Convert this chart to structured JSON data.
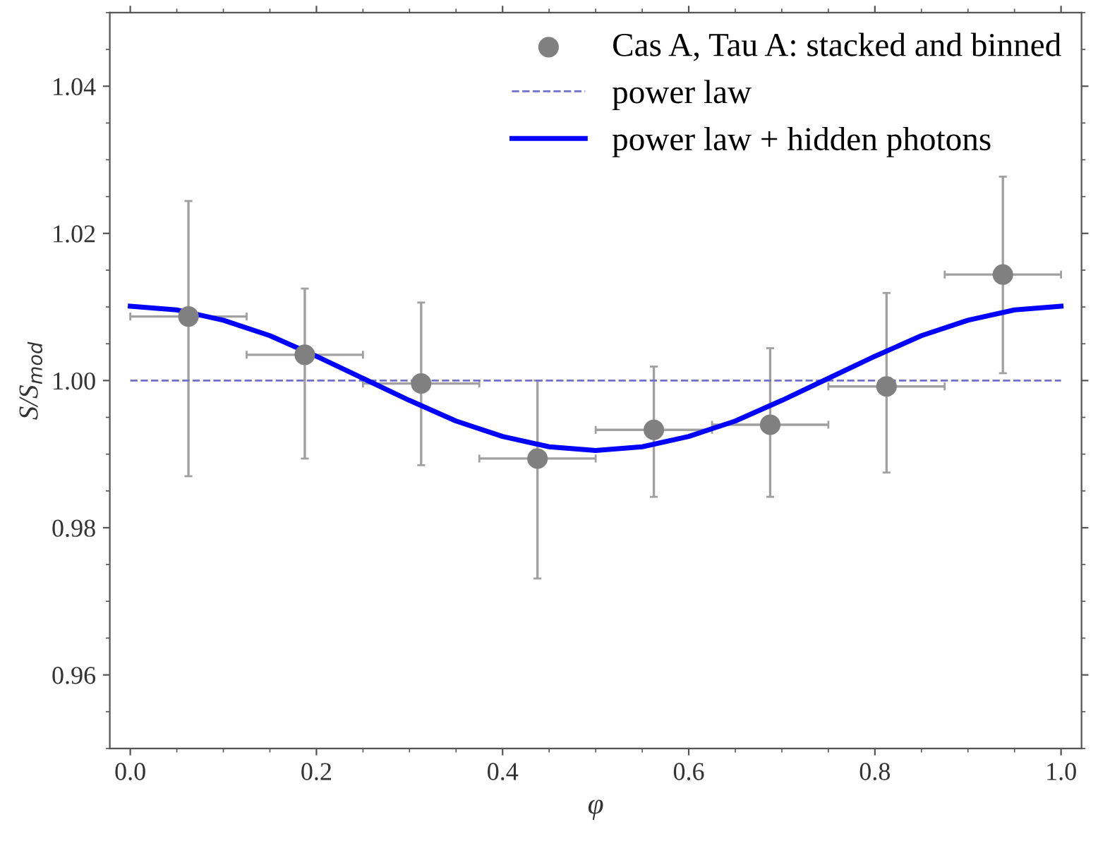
{
  "chart_data": {
    "type": "scatter",
    "xlabel": "φ",
    "ylabel": "S/S$_{mod}$",
    "xlim": [
      -0.022,
      1.022
    ],
    "ylim": [
      0.95,
      1.05
    ],
    "xticks": [
      {
        "value": 0.0,
        "label": "0.0"
      },
      {
        "value": 0.2,
        "label": "0.2"
      },
      {
        "value": 0.4,
        "label": "0.4"
      },
      {
        "value": 0.6,
        "label": "0.6"
      },
      {
        "value": 0.8,
        "label": "0.8"
      },
      {
        "value": 1.0,
        "label": "1.0"
      }
    ],
    "yticks": [
      {
        "value": 0.96,
        "label": "0.96"
      },
      {
        "value": 0.98,
        "label": "0.98"
      },
      {
        "value": 1.0,
        "label": "1.00"
      },
      {
        "value": 1.02,
        "label": "1.02"
      },
      {
        "value": 1.04,
        "label": "1.04"
      }
    ],
    "legend": "top right",
    "grid": false,
    "series": [
      {
        "name": "Cas A, Tau A: stacked and binned",
        "marker": "circle",
        "color": "#808080",
        "x": [
          0.0625,
          0.1875,
          0.3125,
          0.4375,
          0.5625,
          0.6875,
          0.8125,
          0.9375
        ],
        "values": [
          1.0087,
          1.0035,
          0.9996,
          0.9894,
          0.9933,
          0.994,
          0.9992,
          1.0144
        ],
        "errors": [
          [
            0.987,
            1.0244
          ],
          [
            0.9894,
            1.0125
          ],
          [
            0.9885,
            1.0106
          ],
          [
            0.9731,
            1.0
          ],
          [
            0.9842,
            1.0019
          ],
          [
            0.9842,
            1.0044
          ],
          [
            0.9875,
            1.0119
          ],
          [
            1.001,
            1.0277
          ]
        ],
        "xerrors": [
          0.0625,
          0.0625,
          0.0625,
          0.0625,
          0.0625,
          0.0625,
          0.0625,
          0.0625
        ]
      },
      {
        "name": "power law",
        "type": "line",
        "line_style": "dashed",
        "color": "#7070c8",
        "x": [
          0.0,
          1.0
        ],
        "values": [
          1.0,
          1.0
        ]
      },
      {
        "name": "power law + hidden photons",
        "type": "line",
        "line_style": "solid",
        "color": "#0000ff",
        "x": [
          0.0,
          0.05,
          0.1,
          0.15,
          0.2,
          0.25,
          0.3,
          0.35,
          0.4,
          0.45,
          0.5,
          0.55,
          0.6,
          0.65,
          0.7,
          0.75,
          0.8,
          0.85,
          0.9,
          0.95,
          1.0
        ],
        "values": [
          1.0101,
          1.0096,
          1.0082,
          1.0061,
          1.0033,
          1.0003,
          0.9973,
          0.9945,
          0.9924,
          0.991,
          0.9905,
          0.991,
          0.9924,
          0.9945,
          0.9973,
          1.0003,
          1.0033,
          1.0061,
          1.0082,
          1.0096,
          1.0101
        ]
      }
    ]
  }
}
